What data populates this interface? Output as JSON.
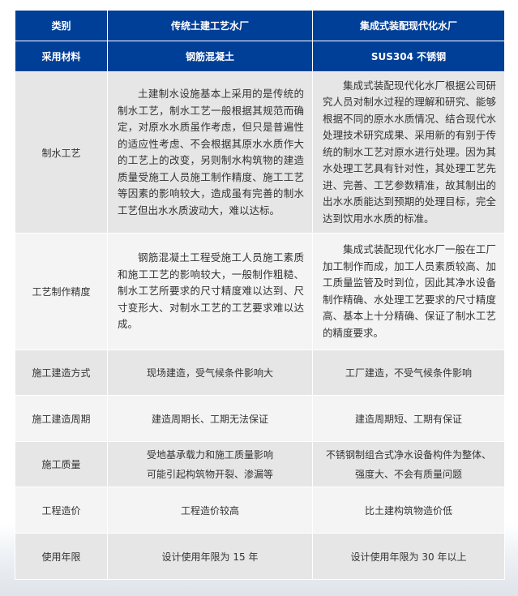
{
  "header": {
    "col1": "类别",
    "col2": "传统土建工艺水厂",
    "col3": "集成式装配现代化水厂"
  },
  "material": {
    "label": "采用材料",
    "traditional": "钢筋混凝土",
    "integrated": "SUS304 不锈钢"
  },
  "rows": [
    {
      "label": "制水工艺",
      "traditional": "土建制水设施基本上采用的是传统的制水工艺，制水工艺一般根据其规范而确定，对原水水质虽作考虑，但只是普遍性的适应性考虑、不会根据其原水水质作大的工艺上的改变，另则制水构筑物的建造质量受施工人员施工制作精度、施工工艺等因素的影响较大，造成虽有完善的制水工艺但出水水质波动大，难以达标。",
      "integrated": "集成式装配现代化水厂根据公司研究人员对制水过程的理解和研究、能够根据不同的原水水质情况、结合现代水处理技术研究成果、采用新的有别于传统的制水工艺对原水进行处理。因为其水处理工艺具有针对性，其处理工艺先进、完善、工艺参数精准，故其制出的出水水质能达到预期的处理目标，完全达到饮用水水质的标准。"
    },
    {
      "label": "工艺制作精度",
      "traditional": "钢筋混凝土工程受施工人员施工素质和施工工艺的影响较大，一般制作粗糙、制水工艺所要求的尺寸精度难以达到、尺寸变形大、对制水工艺的工艺要求难以达成。",
      "integrated": "集成式装配现代化水厂一般在工厂加工制作而成，加工人员素质较高、加工质量监管及时到位，因此其净水设备制作精确、水处理工艺要求的尺寸精度高、基本上十分精确、保证了制水工艺的精度要求。"
    },
    {
      "label": "施工建造方式",
      "traditional": "现场建造，受气候条件影响大",
      "integrated": "工厂建造，不受气候条件影响"
    },
    {
      "label": "施工建造周期",
      "traditional": "建造周期长、工期无法保证",
      "integrated": "建造周期短、工期有保证"
    },
    {
      "label": "施工质量",
      "traditional_lines": [
        "受地基承载力和施工质量影响",
        "可能引起构筑物开裂、渗漏等"
      ],
      "integrated_lines": [
        "不锈钢制组合式净水设备构件为整体、",
        "强度大、不会有质量问题"
      ]
    },
    {
      "label": "工程造价",
      "traditional": "工程造价较高",
      "integrated": "比土建构筑物造价低"
    },
    {
      "label": "使用年限",
      "traditional": "设计使用年限为 15 年",
      "integrated": "设计使用年限为 30 年以上"
    }
  ],
  "colors": {
    "header_bg": "#003f98",
    "row_gray": "#e6e6e6",
    "row_light": "#f4f4f4"
  }
}
